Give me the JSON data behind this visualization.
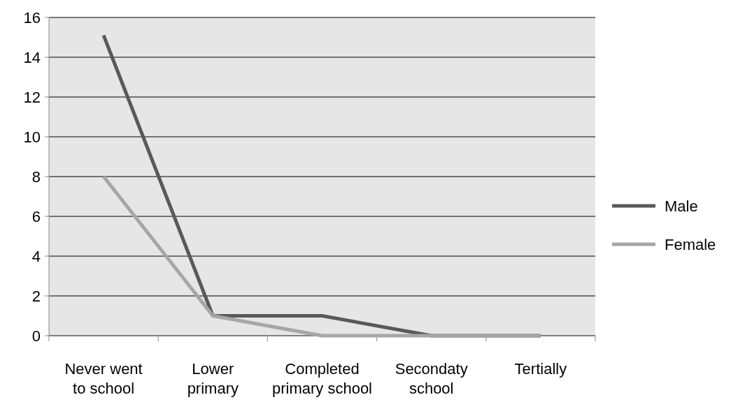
{
  "chart_data": {
    "type": "line",
    "categories": [
      "Never went\nto school",
      "Lower\nprimary",
      "Completed\nprimary school",
      "Secondaty\nschool",
      "Tertially"
    ],
    "series": [
      {
        "name": "Male",
        "color": "#595959",
        "values": [
          15.1,
          1,
          1,
          0,
          0
        ]
      },
      {
        "name": "Female",
        "color": "#a6a6a6",
        "values": [
          8,
          1,
          0,
          0,
          0
        ]
      }
    ],
    "ylim": [
      0,
      16
    ],
    "yticks": [
      0,
      2,
      4,
      6,
      8,
      10,
      12,
      14,
      16
    ],
    "grid": "y",
    "legend": "right",
    "marker": "none",
    "line_style": "solid"
  }
}
